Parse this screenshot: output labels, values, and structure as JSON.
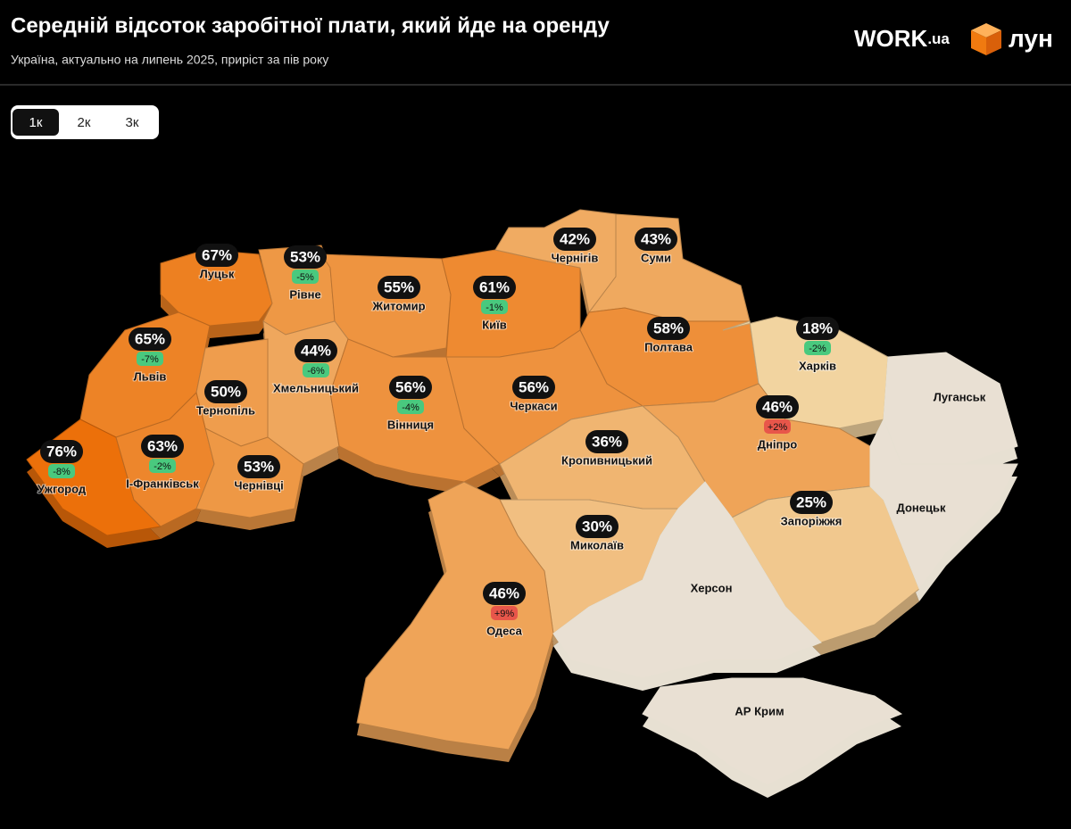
{
  "header": {
    "title": "Середній відсоток заробітної плати, який йде на оренду",
    "subtitle": "Україна, актуально на липень 2025, приріст за пів року"
  },
  "logos": {
    "work_main": "WORK",
    "work_suffix": ".ua",
    "lun": "лун"
  },
  "tabs": {
    "items": [
      "1к",
      "2к",
      "3к"
    ],
    "active": 0
  },
  "regions": [
    {
      "name": "Луцьк",
      "value": 67,
      "value_label": "67%"
    },
    {
      "name": "Рівне",
      "value": 53,
      "value_label": "53%",
      "change": "-5%"
    },
    {
      "name": "Житомир",
      "value": 55,
      "value_label": "55%"
    },
    {
      "name": "Київ",
      "value": 61,
      "value_label": "61%",
      "change": "-1%"
    },
    {
      "name": "Чернігів",
      "value": 42,
      "value_label": "42%"
    },
    {
      "name": "Суми",
      "value": 43,
      "value_label": "43%"
    },
    {
      "name": "Полтава",
      "value": 58,
      "value_label": "58%"
    },
    {
      "name": "Харків",
      "value": 18,
      "value_label": "18%",
      "change": "-2%"
    },
    {
      "name": "Львів",
      "value": 65,
      "value_label": "65%",
      "change": "-7%"
    },
    {
      "name": "Хмельницький",
      "value": 44,
      "value_label": "44%",
      "change": "-6%"
    },
    {
      "name": "Тернопіль",
      "value": 50,
      "value_label": "50%"
    },
    {
      "name": "Вінниця",
      "value": 56,
      "value_label": "56%",
      "change": "-4%"
    },
    {
      "name": "Черкаси",
      "value": 56,
      "value_label": "56%"
    },
    {
      "name": "Дніпро",
      "value": 46,
      "value_label": "46%",
      "change": "+2%"
    },
    {
      "name": "Кропивницький",
      "value": 36,
      "value_label": "36%"
    },
    {
      "name": "Ужгород",
      "value": 76,
      "value_label": "76%",
      "change": "-8%"
    },
    {
      "name": "І-Франківськ",
      "value": 63,
      "value_label": "63%",
      "change": "-2%"
    },
    {
      "name": "Чернівці",
      "value": 53,
      "value_label": "53%"
    },
    {
      "name": "Запоріжжя",
      "value": 25,
      "value_label": "25%"
    },
    {
      "name": "Миколаїв",
      "value": 30,
      "value_label": "30%"
    },
    {
      "name": "Одеса",
      "value": 46,
      "value_label": "46%",
      "change": "+9%"
    },
    {
      "name": "Луганськ"
    },
    {
      "name": "Донецьк"
    },
    {
      "name": "Херсон"
    },
    {
      "name": "АР Крим"
    }
  ]
}
